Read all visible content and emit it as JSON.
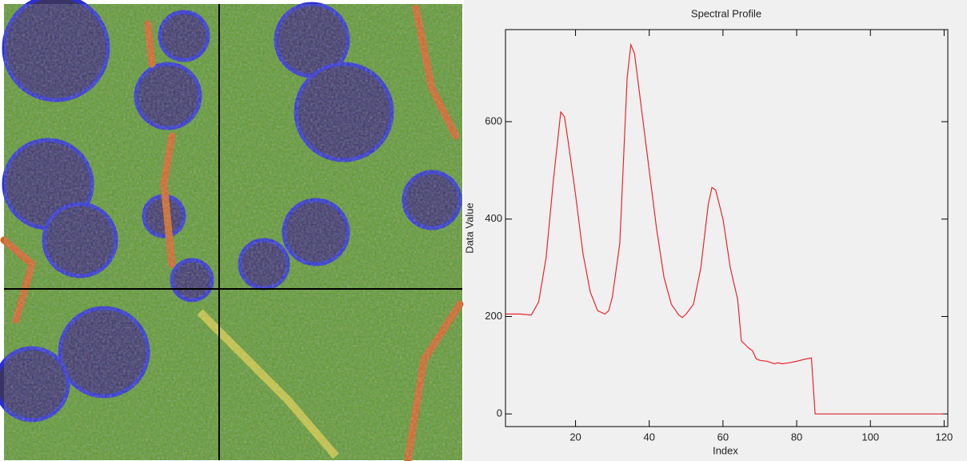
{
  "chart_data": {
    "type": "line",
    "title": "Spectral Profile",
    "x_label": "Index",
    "y_label": "Data Value",
    "x": [
      1,
      5,
      8,
      10,
      12,
      14,
      16,
      17,
      18,
      20,
      22,
      24,
      26,
      28,
      29,
      30,
      32,
      34,
      35,
      36,
      38,
      40,
      42,
      44,
      46,
      48,
      49,
      50,
      52,
      54,
      56,
      57,
      58,
      60,
      62,
      64,
      65,
      67,
      68,
      69,
      70,
      72,
      74,
      75,
      76,
      78,
      80,
      82,
      84,
      85,
      120
    ],
    "values": [
      205,
      205,
      203,
      230,
      320,
      480,
      620,
      610,
      560,
      450,
      330,
      250,
      212,
      205,
      212,
      240,
      350,
      690,
      758,
      740,
      620,
      500,
      380,
      280,
      225,
      203,
      198,
      205,
      225,
      300,
      430,
      465,
      460,
      400,
      300,
      235,
      150,
      135,
      130,
      113,
      110,
      108,
      103,
      105,
      103,
      105,
      108,
      112,
      115,
      0,
      0
    ],
    "color": "#e8262b",
    "xlim": [
      1,
      121
    ],
    "ylim": [
      -26,
      789
    ],
    "xticks": [
      20,
      40,
      60,
      80,
      100,
      120
    ],
    "yticks": [
      0,
      200,
      400,
      600
    ]
  }
}
